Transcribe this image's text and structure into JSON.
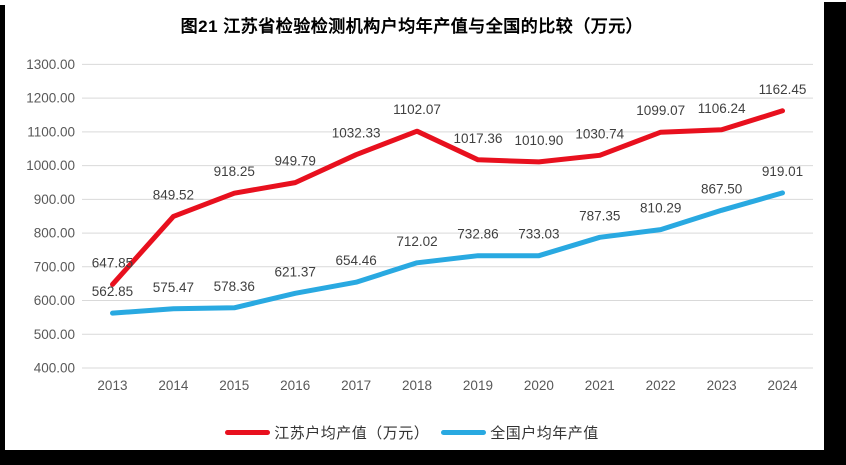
{
  "title": "图21  江苏省检验检测机构户均年产值与全国的比较（万元）",
  "chart_data": {
    "type": "line",
    "categories": [
      "2013",
      "2014",
      "2015",
      "2016",
      "2017",
      "2018",
      "2019",
      "2020",
      "2021",
      "2022",
      "2023",
      "2024"
    ],
    "series": [
      {
        "name": "江苏户均产值（万元）",
        "color": "#e8101e",
        "values": [
          647.85,
          849.52,
          918.25,
          949.79,
          1032.33,
          1102.07,
          1017.36,
          1010.9,
          1030.74,
          1099.07,
          1106.24,
          1162.45
        ]
      },
      {
        "name": "全国户均年产值",
        "color": "#29a9e1",
        "values": [
          562.85,
          575.47,
          578.36,
          621.37,
          654.46,
          712.02,
          732.86,
          733.03,
          787.35,
          810.29,
          867.5,
          919.01
        ]
      }
    ],
    "title": "图21  江苏省检验检测机构户均年产值与全国的比较（万元）",
    "xlabel": "",
    "ylabel": "",
    "ylim": [
      400,
      1300
    ],
    "ytick_step": 100,
    "ytick_decimals": 2,
    "data_label_decimals": 2,
    "grid": true,
    "legend_position": "bottom"
  },
  "colors": {
    "gridline": "#d9d9d9",
    "axis_text": "#595959",
    "data_label_text": "#404040",
    "title_text": "#000000",
    "background": "#ffffff",
    "frame": "#000000"
  }
}
